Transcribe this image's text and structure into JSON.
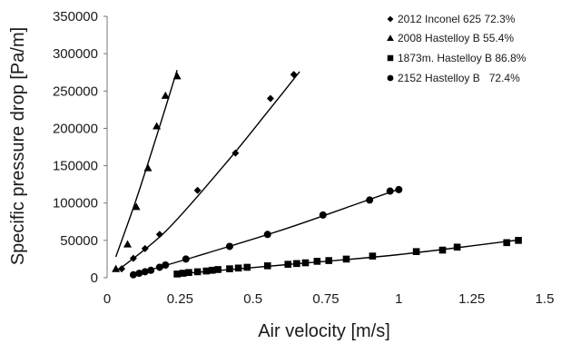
{
  "chart_data": {
    "type": "scatter",
    "xlabel": "Air velocity [m/s]",
    "ylabel": "Specific pressure drop [Pa/m]",
    "xlim": [
      0,
      1.5
    ],
    "ylim": [
      0,
      350000
    ],
    "x_ticks": [
      "0",
      "0.25",
      "0.5",
      "0.75",
      "1",
      "1.25",
      "1.5"
    ],
    "y_ticks": [
      "0",
      "50000",
      "100000",
      "150000",
      "200000",
      "250000",
      "300000",
      "350000"
    ],
    "grid": false,
    "legend_position": "top-right",
    "series": [
      {
        "name": "2012 Inconel 625 72.3%",
        "marker": "diamond",
        "x": [
          0.05,
          0.09,
          0.13,
          0.18,
          0.31,
          0.44,
          0.56,
          0.64
        ],
        "y": [
          12000,
          26000,
          39000,
          58000,
          117000,
          167000,
          240000,
          272000
        ],
        "fit": [
          [
            0.03,
            8000
          ],
          [
            0.2,
            62000
          ],
          [
            0.4,
            150000
          ],
          [
            0.55,
            222000
          ],
          [
            0.66,
            276000
          ]
        ]
      },
      {
        "name": "2008 Hastelloy B 55.4%",
        "marker": "triangle",
        "x": [
          0.03,
          0.07,
          0.1,
          0.14,
          0.17,
          0.2,
          0.24
        ],
        "y": [
          12000,
          45000,
          95000,
          147000,
          203000,
          244000,
          270000
        ],
        "fit": [
          [
            0.03,
            28000
          ],
          [
            0.1,
            105000
          ],
          [
            0.17,
            190000
          ],
          [
            0.24,
            278000
          ]
        ]
      },
      {
        "name": "1873m. Hastelloy B 86.8%",
        "marker": "square",
        "x": [
          0.24,
          0.26,
          0.28,
          0.31,
          0.34,
          0.36,
          0.38,
          0.42,
          0.45,
          0.48,
          0.55,
          0.62,
          0.65,
          0.68,
          0.72,
          0.76,
          0.82,
          0.91,
          1.06,
          1.15,
          1.2,
          1.37,
          1.41
        ],
        "y": [
          5000,
          6000,
          7000,
          8000,
          9000,
          10000,
          11000,
          12000,
          13000,
          14000,
          16000,
          18000,
          19000,
          20000,
          22000,
          23000,
          25000,
          29000,
          35000,
          37000,
          41000,
          47000,
          50000
        ],
        "fit": [
          [
            0.24,
            5000
          ],
          [
            0.6,
            17000
          ],
          [
            1.0,
            31000
          ],
          [
            1.42,
            51000
          ]
        ]
      },
      {
        "name": "2152 Hastelloy B   72.4%",
        "marker": "circle",
        "x": [
          0.09,
          0.11,
          0.13,
          0.15,
          0.18,
          0.2,
          0.27,
          0.42,
          0.55,
          0.74,
          0.9,
          0.97,
          1.0
        ],
        "y": [
          4000,
          6000,
          8000,
          10000,
          14000,
          17000,
          25000,
          42000,
          58000,
          84000,
          104000,
          116000,
          118000
        ],
        "fit": [
          [
            0.08,
            3000
          ],
          [
            0.3,
            28000
          ],
          [
            0.6,
            64000
          ],
          [
            0.85,
            98000
          ],
          [
            1.01,
            120000
          ]
        ]
      }
    ]
  }
}
